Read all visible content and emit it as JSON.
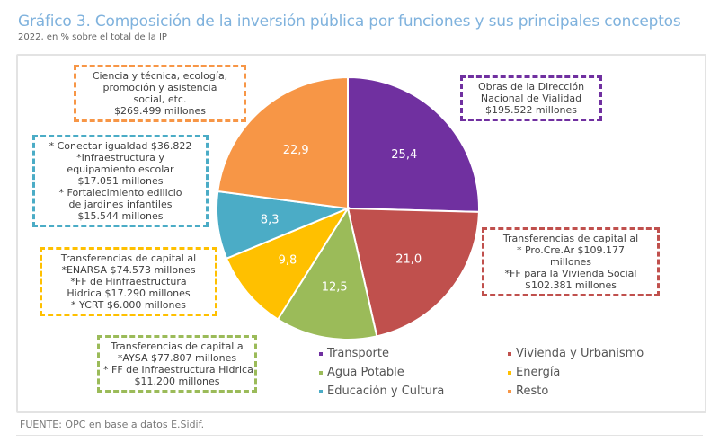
{
  "chart_data": {
    "type": "pie",
    "title": "Gráfico 3. Composición de la inversión pública por funciones y sus principales conceptos",
    "subtitle": "2022, en % sobre el total de la IP",
    "categories": [
      "Transporte",
      "Vivienda y Urbanismo",
      "Agua Potable",
      "Energía",
      "Educación y Cultura",
      "Resto"
    ],
    "values": [
      25.4,
      21.0,
      12.5,
      9.8,
      8.3,
      22.9
    ],
    "data_labels": [
      "25,4",
      "21,0",
      "12,5",
      "9,8",
      "8,3",
      "22,9"
    ],
    "colors": [
      "#7030A0",
      "#C0504D",
      "#9BBB59",
      "#FFC000",
      "#4BACC6",
      "#F79646"
    ],
    "legend_position": "bottom-right",
    "annotations": [
      {
        "series": "Transporte",
        "lines": [
          "Obras de la Dirección",
          "Nacional de Vialidad",
          "$195.522 millones"
        ]
      },
      {
        "series": "Vivienda y Urbanismo",
        "lines": [
          "Transferencias de capital al",
          "* Pro.Cre.Ar  $109.177",
          "millones",
          "*FF para la Vivienda Social",
          "$102.381 millones"
        ]
      },
      {
        "series": "Agua Potable",
        "lines": [
          "Transferencias de capital a",
          "*AYSA $77.807 millones",
          "* FF de Infraestructura Hidrica",
          "$11.200 millones"
        ]
      },
      {
        "series": "Energía",
        "lines": [
          "Transferencias de capital al",
          "*ENARSA $74.573 millones",
          "*FF de Hinfraestructura",
          "Hidrica $17.290 millones",
          "* YCRT $6.000 millones"
        ]
      },
      {
        "series": "Educación y Cultura",
        "lines": [
          "* Conectar igualdad $36.822",
          "*Infraestructura y",
          "equipamiento escolar",
          "$17.051 millones",
          "* Fortalecimiento edilicio",
          "de jardines infantiles",
          "$15.544 millones"
        ]
      },
      {
        "series": "Resto",
        "lines": [
          "Ciencia y técnica, ecología,",
          "promoción y asistencia",
          "social, etc.",
          "$269.499 millones"
        ]
      }
    ],
    "source": "FUENTE: OPC en base a datos E.Sidif."
  }
}
